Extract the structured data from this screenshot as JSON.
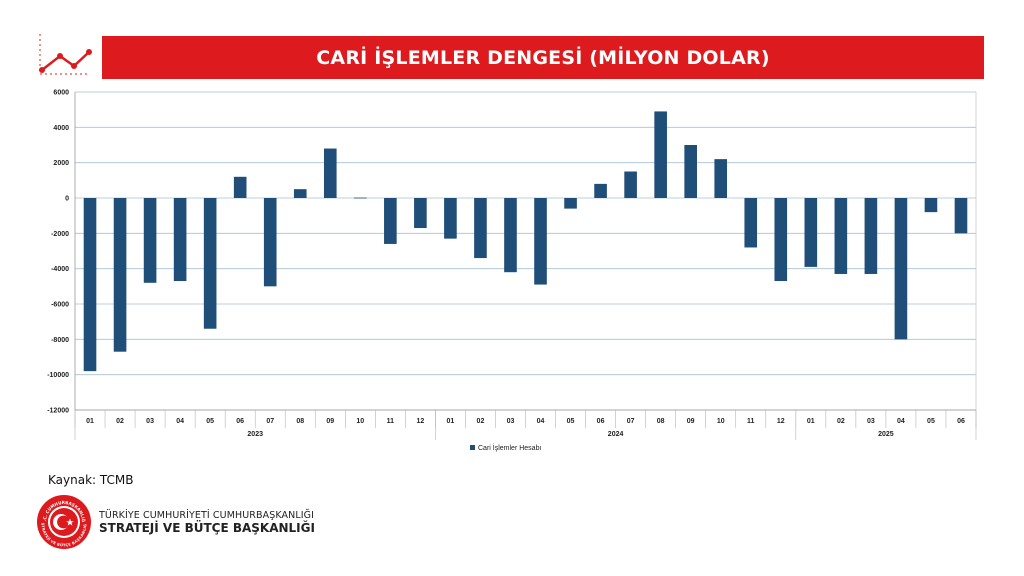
{
  "header": {
    "title": "CARİ İŞLEMLER DENGESİ (MİLYON DOLAR)",
    "icon": "trend-line-icon",
    "accent_color": "#dd1b1e"
  },
  "chart_data": {
    "type": "bar",
    "title": "CARİ İŞLEMLER DENGESİ (MİLYON DOLAR)",
    "xlabel": "",
    "ylabel": "",
    "ylim": [
      -12000,
      6000
    ],
    "yticks": [
      "6000",
      "4000",
      "2000",
      "0",
      "-2000",
      "-4000",
      "-6000",
      "-8000",
      "-10000",
      "-12000"
    ],
    "grid": true,
    "legend_position": "bottom",
    "bar_color": "#1f4e79",
    "categories": [
      "01",
      "02",
      "03",
      "04",
      "05",
      "06",
      "07",
      "08",
      "09",
      "10",
      "11",
      "12",
      "01",
      "02",
      "03",
      "04",
      "05",
      "06",
      "07",
      "08",
      "09",
      "10",
      "11",
      "12",
      "01",
      "02",
      "03",
      "04",
      "05",
      "06"
    ],
    "groups": [
      {
        "label": "2023",
        "count": 12
      },
      {
        "label": "2024",
        "count": 12
      },
      {
        "label": "2025",
        "count": 6
      }
    ],
    "series": [
      {
        "name": "Cari İşlemler Hesabı",
        "values": [
          -9800,
          -8700,
          -4800,
          -4700,
          -7400,
          1200,
          -5000,
          500,
          2800,
          0,
          -2600,
          -1700,
          -2300,
          -3400,
          -4200,
          -4900,
          -600,
          800,
          1500,
          4900,
          3000,
          2200,
          -2800,
          -4700,
          -3900,
          -4300,
          -4300,
          -8000,
          -800,
          -2000
        ]
      }
    ]
  },
  "footer": {
    "source": "Kaynak: TCMB",
    "org_line1": "TÜRKİYE CUMHURİYETİ CUMHURBAŞKANLIĞI",
    "org_line2": "STRATEJİ VE BÜTÇE BAŞKANLIĞI",
    "seal_top": "T.C. CUMHURBAŞKANLIĞI",
    "seal_bottom": "STRATEJİ VE BÜTÇE BAŞKANLIĞI",
    "seal_icon": "crescent-star-seal-icon",
    "seal_color": "#dd1b1e"
  }
}
